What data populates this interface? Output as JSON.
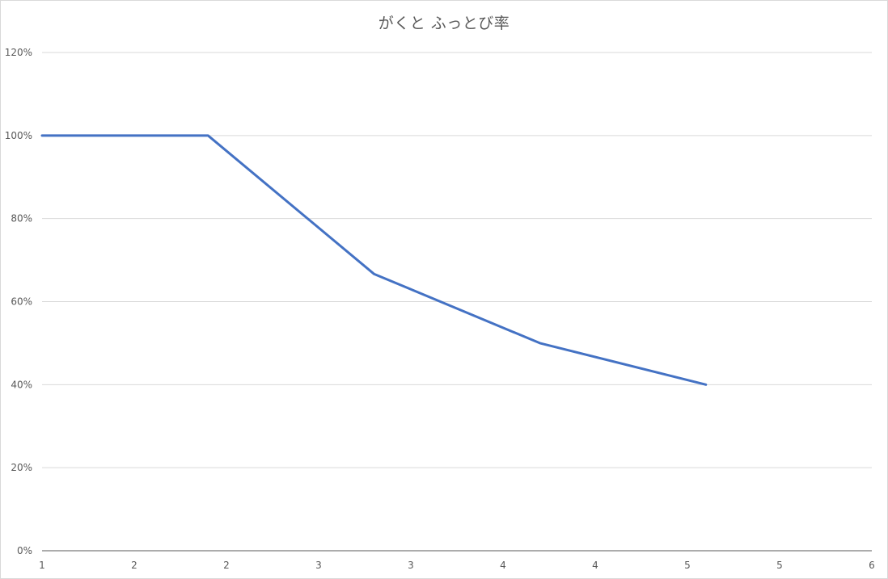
{
  "chart_data": {
    "type": "line",
    "title": "がくと ふっとび率",
    "x": [
      1,
      2,
      3,
      4,
      5
    ],
    "x_tick_labels": [
      "1",
      "2",
      "2",
      "3",
      "3",
      "4",
      "4",
      "5",
      "5",
      "6"
    ],
    "y_tick_labels": [
      "0%",
      "20%",
      "40%",
      "60%",
      "80%",
      "100%",
      "120%"
    ],
    "series": [
      {
        "values": [
          1.0,
          1.0,
          0.6667,
          0.5,
          0.4
        ],
        "color": "#4472c4"
      }
    ],
    "xlim": [
      1,
      6
    ],
    "ylim": [
      0,
      1.2
    ],
    "y_format": "percent",
    "grid": true,
    "legend": "none",
    "colors": {
      "line": "#4472c4",
      "grid": "#d9d9d9",
      "axis": "#595959",
      "text": "#595959"
    }
  }
}
